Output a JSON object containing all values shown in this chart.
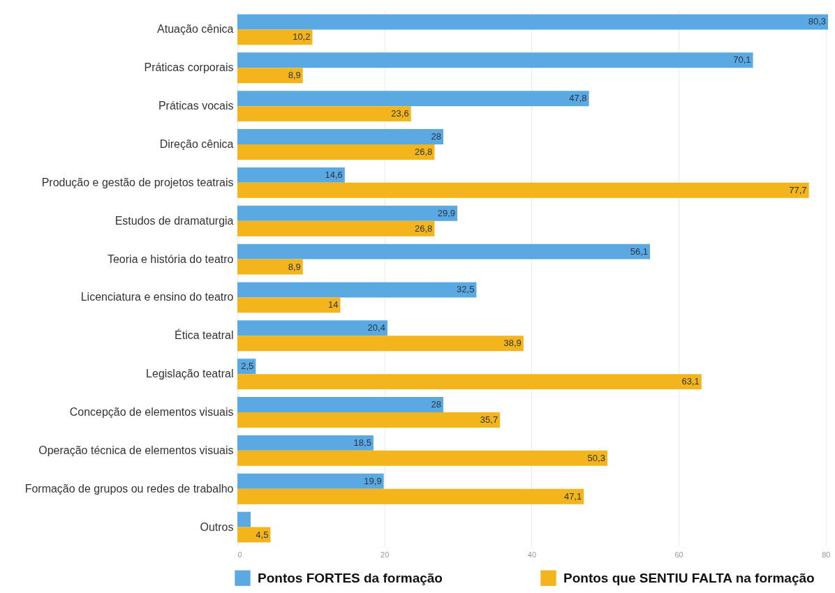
{
  "chart_data": {
    "type": "bar",
    "orientation": "horizontal",
    "categories": [
      "Atuação cênica",
      "Práticas corporais",
      "Práticas vocais",
      "Direção cênica",
      "Produção e gestão de projetos teatrais",
      "Estudos de dramaturgia",
      "Teoria e história do teatro",
      "Licenciatura e ensino do teatro",
      "Ética teatral",
      "Legislação teatral",
      "Concepção de elementos visuais",
      "Operação técnica de elementos visuais",
      "Formação de grupos ou redes de trabalho",
      "Outros"
    ],
    "series": [
      {
        "name": "Pontos FORTES da formação",
        "color": "#5aa9e3",
        "values": [
          80.3,
          70.1,
          47.8,
          28,
          14.6,
          29.9,
          56.1,
          32.5,
          20.4,
          2.5,
          28,
          18.5,
          19.9,
          1.8
        ],
        "value_labels": [
          "80,3",
          "70,1",
          "47,8",
          "28",
          "14,6",
          "29,9",
          "56,1",
          "32,5",
          "20,4",
          "2,5",
          "28",
          "18,5",
          "19,9",
          null
        ]
      },
      {
        "name": "Pontos que SENTIU FALTA na formação",
        "color": "#f4b41c",
        "values": [
          10.2,
          8.9,
          23.6,
          26.8,
          77.7,
          26.8,
          8.9,
          14,
          38.9,
          63.1,
          35.7,
          50.3,
          47.1,
          4.5
        ],
        "value_labels": [
          "10,2",
          "8,9",
          "23,6",
          "26,8",
          "77,7",
          "26,8",
          "8,9",
          "14",
          "38,9",
          "63,1",
          "35,7",
          "50,3",
          "47,1",
          "4,5"
        ]
      }
    ],
    "xlim": [
      0,
      80.3
    ],
    "xticks": [
      0,
      20,
      40,
      60,
      80
    ],
    "grid": true,
    "legend": "bottom"
  }
}
